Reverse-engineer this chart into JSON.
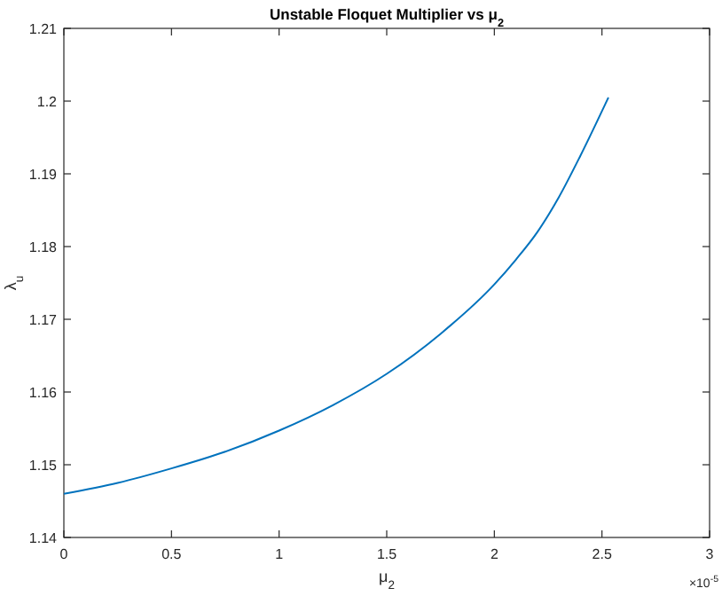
{
  "chart_data": {
    "type": "line",
    "title": "Unstable Floquet Multiplier vs μ$_{2}$",
    "xlabel": "μ$_{2}$",
    "ylabel": "λ$_{u}$",
    "annotations": [
      "×10$^{-5}$"
    ],
    "x": [
      0,
      0.25,
      0.5,
      0.75,
      1,
      1.25,
      1.5,
      1.75,
      2,
      2.1,
      2.2,
      2.3,
      2.4,
      2.53
    ],
    "series": [
      {
        "color": "#0072bd",
        "values": [
          1.146,
          1.1475,
          1.1495,
          1.1518,
          1.1547,
          1.1582,
          1.1625,
          1.168,
          1.1748,
          1.1782,
          1.182,
          1.1868,
          1.1925,
          1.2005
        ]
      }
    ],
    "xlim": [
      0,
      3
    ],
    "xticks": [
      0,
      0.5,
      1,
      1.5,
      2,
      2.5,
      3
    ],
    "ylim": [
      1.14,
      1.21
    ],
    "yticks": [
      1.14,
      1.15,
      1.16,
      1.17,
      1.18,
      1.19,
      1.2,
      1.21
    ],
    "marker": "none",
    "line_style": "solid"
  }
}
